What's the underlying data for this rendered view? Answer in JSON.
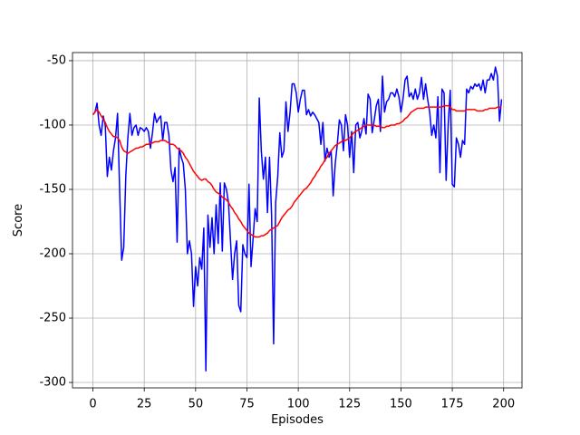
{
  "chart_data": {
    "type": "line",
    "xlabel": "Episodes",
    "ylabel": "Score",
    "x": [
      0,
      1,
      2,
      3,
      4,
      5,
      6,
      7,
      8,
      9,
      10,
      11,
      12,
      13,
      14,
      15,
      16,
      17,
      18,
      19,
      20,
      21,
      22,
      23,
      24,
      25,
      26,
      27,
      28,
      29,
      30,
      31,
      32,
      33,
      34,
      35,
      36,
      37,
      38,
      39,
      40,
      41,
      42,
      43,
      44,
      45,
      46,
      47,
      48,
      49,
      50,
      51,
      52,
      53,
      54,
      55,
      56,
      57,
      58,
      59,
      60,
      61,
      62,
      63,
      64,
      65,
      66,
      67,
      68,
      69,
      70,
      71,
      72,
      73,
      74,
      75,
      76,
      77,
      78,
      79,
      80,
      81,
      82,
      83,
      84,
      85,
      86,
      87,
      88,
      89,
      90,
      91,
      92,
      93,
      94,
      95,
      96,
      97,
      98,
      99,
      100,
      101,
      102,
      103,
      104,
      105,
      106,
      107,
      108,
      109,
      110,
      111,
      112,
      113,
      114,
      115,
      116,
      117,
      118,
      119,
      120,
      121,
      122,
      123,
      124,
      125,
      126,
      127,
      128,
      129,
      130,
      131,
      132,
      133,
      134,
      135,
      136,
      137,
      138,
      139,
      140,
      141,
      142,
      143,
      144,
      145,
      146,
      147,
      148,
      149,
      150,
      151,
      152,
      153,
      154,
      155,
      156,
      157,
      158,
      159,
      160,
      161,
      162,
      163,
      164,
      165,
      166,
      167,
      168,
      169,
      170,
      171,
      172,
      173,
      174,
      175,
      176,
      177,
      178,
      179,
      180,
      181,
      182,
      183,
      184,
      185,
      186,
      187,
      188,
      189,
      190,
      191,
      192,
      193,
      194,
      195,
      196,
      197,
      198,
      199
    ],
    "series": [
      {
        "color": "#0000ff",
        "values": [
          -92,
          -90,
          -83,
          -100,
          -108,
          -93,
          -100,
          -140,
          -125,
          -135,
          -120,
          -110,
          -91,
          -150,
          -205,
          -195,
          -140,
          -110,
          -91,
          -108,
          -102,
          -100,
          -108,
          -102,
          -103,
          -105,
          -102,
          -105,
          -118,
          -106,
          -91,
          -98,
          -95,
          -93,
          -112,
          -98,
          -98,
          -108,
          -135,
          -144,
          -133,
          -191,
          -118,
          -125,
          -130,
          -150,
          -200,
          -190,
          -200,
          -241,
          -210,
          -225,
          -203,
          -212,
          -180,
          -291,
          -170,
          -195,
          -172,
          -200,
          -162,
          -192,
          -145,
          -198,
          -145,
          -150,
          -160,
          -190,
          -220,
          -200,
          -190,
          -240,
          -245,
          -193,
          -200,
          -203,
          -146,
          -210,
          -188,
          -165,
          -175,
          -79,
          -120,
          -142,
          -125,
          -168,
          -125,
          -170,
          -270,
          -160,
          -140,
          -106,
          -125,
          -120,
          -82,
          -105,
          -90,
          -68,
          -68,
          -75,
          -90,
          -80,
          -73,
          -73,
          -92,
          -88,
          -93,
          -90,
          -92,
          -95,
          -98,
          -115,
          -98,
          -128,
          -118,
          -125,
          -120,
          -155,
          -130,
          -115,
          -96,
          -100,
          -120,
          -92,
          -100,
          -125,
          -105,
          -137,
          -100,
          -98,
          -110,
          -104,
          -95,
          -107,
          -76,
          -80,
          -106,
          -96,
          -85,
          -80,
          -105,
          -62,
          -90,
          -82,
          -80,
          -75,
          -75,
          -78,
          -72,
          -78,
          -90,
          -80,
          -65,
          -62,
          -78,
          -75,
          -80,
          -72,
          -80,
          -75,
          -63,
          -80,
          -68,
          -80,
          -90,
          -108,
          -100,
          -110,
          -78,
          -137,
          -72,
          -75,
          -143,
          -100,
          -73,
          -146,
          -148,
          -110,
          -115,
          -125,
          -112,
          -115,
          -72,
          -75,
          -70,
          -72,
          -68,
          -70,
          -68,
          -73,
          -65,
          -75,
          -65,
          -65,
          -60,
          -65,
          -55,
          -62,
          -97,
          -80
        ]
      },
      {
        "color": "#ff0000",
        "values": [
          -92,
          -90,
          -88,
          -90,
          -93,
          -95,
          -98,
          -102,
          -105,
          -107,
          -109,
          -109,
          -110,
          -112,
          -117,
          -120,
          -121,
          -122,
          -121,
          -120,
          -119,
          -118,
          -118,
          -117,
          -117,
          -116,
          -115,
          -115,
          -114,
          -114,
          -113,
          -113,
          -113,
          -112,
          -112,
          -112,
          -113,
          -114,
          -115,
          -115,
          -116,
          -118,
          -119,
          -120,
          -122,
          -125,
          -127,
          -130,
          -133,
          -136,
          -138,
          -140,
          -142,
          -143,
          -142,
          -142,
          -144,
          -145,
          -147,
          -150,
          -152,
          -153,
          -154,
          -156,
          -157,
          -158,
          -160,
          -163,
          -165,
          -168,
          -170,
          -173,
          -175,
          -178,
          -180,
          -182,
          -184,
          -185,
          -186,
          -187,
          -187,
          -187,
          -186,
          -186,
          -185,
          -184,
          -182,
          -181,
          -180,
          -179,
          -178,
          -175,
          -172,
          -170,
          -168,
          -166,
          -165,
          -163,
          -160,
          -158,
          -156,
          -154,
          -152,
          -150,
          -149,
          -147,
          -145,
          -142,
          -140,
          -137,
          -135,
          -132,
          -130,
          -127,
          -125,
          -122,
          -120,
          -118,
          -116,
          -115,
          -114,
          -113,
          -112,
          -112,
          -111,
          -110,
          -108,
          -106,
          -105,
          -104,
          -103,
          -102,
          -101,
          -100,
          -100,
          -100,
          -100,
          -100,
          -101,
          -101,
          -101,
          -102,
          -102,
          -101,
          -101,
          -100,
          -100,
          -100,
          -99,
          -99,
          -98,
          -97,
          -95,
          -94,
          -92,
          -90,
          -89,
          -88,
          -87,
          -87,
          -87,
          -87,
          -86,
          -86,
          -86,
          -86,
          -86,
          -86,
          -86,
          -86,
          -86,
          -85,
          -85,
          -85,
          -86,
          -88,
          -88,
          -89,
          -89,
          -89,
          -89,
          -89,
          -88,
          -88,
          -88,
          -88,
          -88,
          -89,
          -89,
          -89,
          -89,
          -88,
          -88,
          -87,
          -87,
          -87,
          -87,
          -86,
          -86,
          -86
        ]
      }
    ],
    "xlim": [
      -9.95,
      208.95
    ],
    "ylim": [
      -304.2,
      -43.7
    ],
    "xticks": [
      0,
      25,
      50,
      75,
      100,
      125,
      150,
      175,
      200
    ],
    "yticks": [
      -300,
      -250,
      -200,
      -150,
      -100,
      -50
    ],
    "grid": true
  }
}
